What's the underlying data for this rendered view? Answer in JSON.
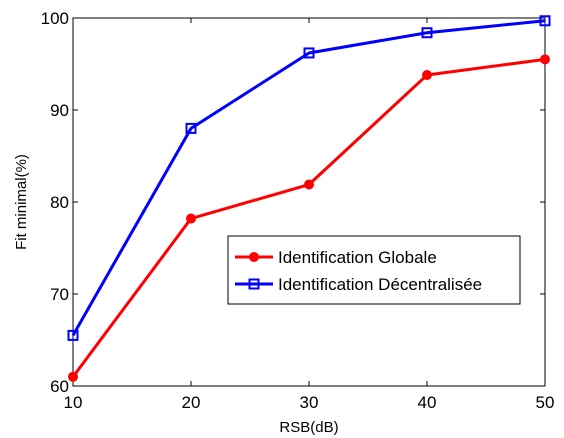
{
  "chart_data": {
    "type": "line",
    "x": [
      10,
      20,
      30,
      40,
      50
    ],
    "xlabel": "RSB(dB)",
    "ylabel": "Fit minimal(%)",
    "xlim": [
      10,
      50
    ],
    "ylim": [
      60,
      100
    ],
    "xticks": [
      10,
      20,
      30,
      40,
      50
    ],
    "yticks": [
      60,
      70,
      80,
      90,
      100
    ],
    "grid": false,
    "legend_position": "center-right",
    "series": [
      {
        "name": "Identification Globale",
        "values": [
          61.0,
          78.2,
          81.9,
          93.8,
          95.5
        ],
        "color": "#ff0000",
        "marker": "circle"
      },
      {
        "name": "Identification Décentralisée",
        "values": [
          65.5,
          88.0,
          96.2,
          98.4,
          99.7
        ],
        "color": "#0000ff",
        "marker": "square"
      }
    ]
  }
}
